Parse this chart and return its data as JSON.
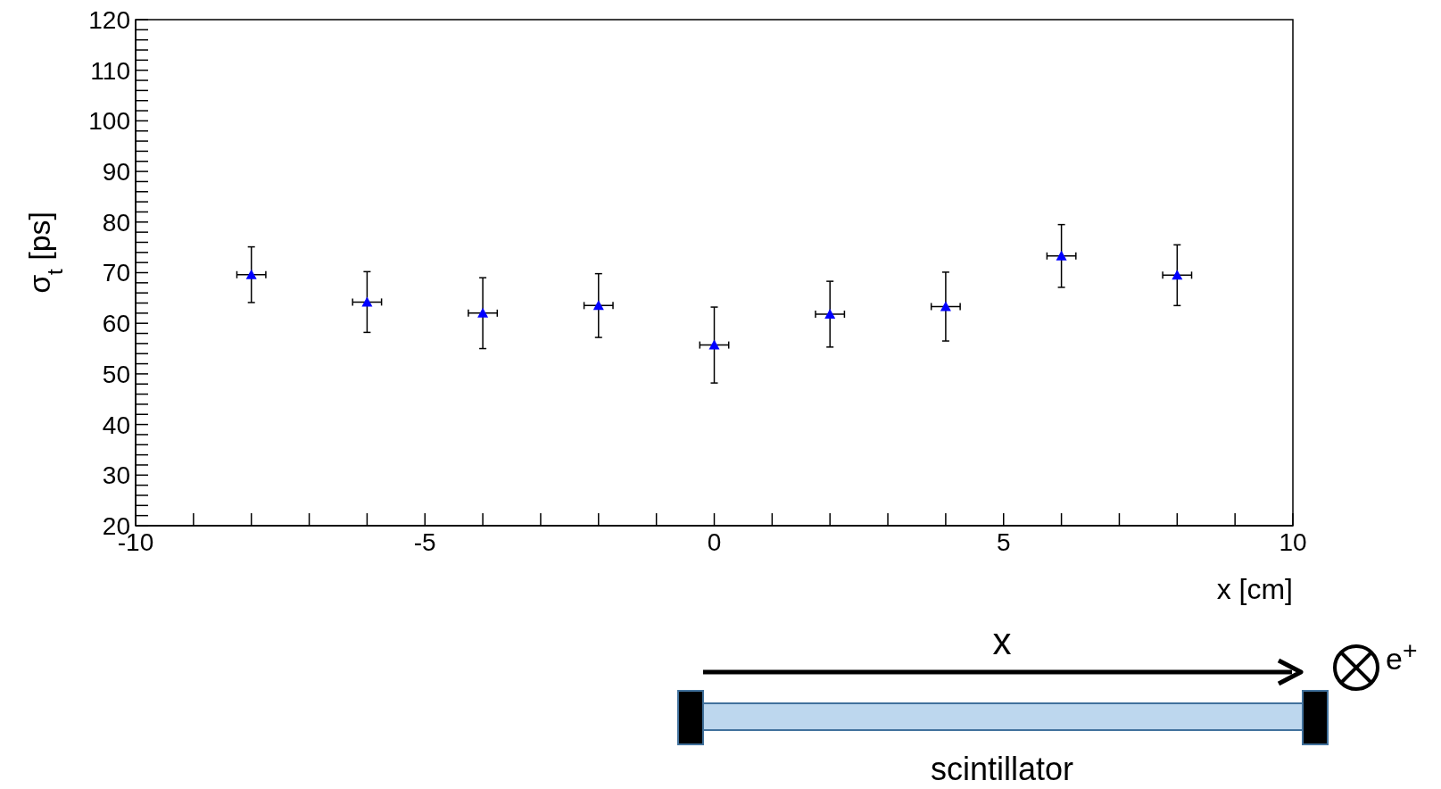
{
  "chart_data": {
    "type": "scatter",
    "xlabel": "x [cm]",
    "ylabel": "σ$_{t}$ [ps]",
    "x": [
      -8,
      -6,
      -4,
      -2,
      0,
      2,
      4,
      6,
      8
    ],
    "series": [
      {
        "color": "#0000ff",
        "values": [
          69.6,
          64.2,
          62.0,
          63.5,
          55.7,
          61.8,
          63.3,
          73.3,
          69.5
        ],
        "errors": [
          5.5,
          6,
          7,
          6.3,
          7.5,
          6.5,
          6.8,
          6.2,
          6
        ],
        "xerrors": [
          0.25,
          0.25,
          0.25,
          0.25,
          0.25,
          0.25,
          0.25,
          0.25,
          0.25
        ]
      }
    ],
    "marker": "triangle",
    "grid": false,
    "legend": false,
    "xlim": [
      -10,
      10
    ],
    "xticks": [
      -10,
      {
        "value": -9,
        "label": null
      },
      {
        "value": -8,
        "label": null
      },
      {
        "value": -7,
        "label": null
      },
      {
        "value": -6,
        "label": null
      },
      -5,
      {
        "value": -4,
        "label": null
      },
      {
        "value": -3,
        "label": null
      },
      {
        "value": -2,
        "label": null
      },
      {
        "value": -1,
        "label": null
      },
      0,
      {
        "value": 1,
        "label": null
      },
      {
        "value": 2,
        "label": null
      },
      {
        "value": 3,
        "label": null
      },
      {
        "value": 4,
        "label": null
      },
      5,
      {
        "value": 6,
        "label": null
      },
      {
        "value": 7,
        "label": null
      },
      {
        "value": 8,
        "label": null
      },
      {
        "value": 9,
        "label": null
      },
      10
    ],
    "ylim": [
      20,
      120
    ],
    "yticks": [
      20,
      {
        "value": 22,
        "label": null
      },
      {
        "value": 24,
        "label": null
      },
      {
        "value": 26,
        "label": null
      },
      {
        "value": 28,
        "label": null
      },
      30,
      {
        "value": 32,
        "label": null
      },
      {
        "value": 34,
        "label": null
      },
      {
        "value": 36,
        "label": null
      },
      {
        "value": 38,
        "label": null
      },
      40,
      {
        "value": 42,
        "label": null
      },
      {
        "value": 44,
        "label": null
      },
      {
        "value": 46,
        "label": null
      },
      {
        "value": 48,
        "label": null
      },
      50,
      {
        "value": 52,
        "label": null
      },
      {
        "value": 54,
        "label": null
      },
      {
        "value": 56,
        "label": null
      },
      {
        "value": 58,
        "label": null
      },
      60,
      {
        "value": 62,
        "label": null
      },
      {
        "value": 64,
        "label": null
      },
      {
        "value": 66,
        "label": null
      },
      {
        "value": 68,
        "label": null
      },
      70,
      {
        "value": 72,
        "label": null
      },
      {
        "value": 74,
        "label": null
      },
      {
        "value": 76,
        "label": null
      },
      {
        "value": 78,
        "label": null
      },
      80,
      {
        "value": 82,
        "label": null
      },
      {
        "value": 84,
        "label": null
      },
      {
        "value": 86,
        "label": null
      },
      {
        "value": 88,
        "label": null
      },
      90,
      {
        "value": 92,
        "label": null
      },
      {
        "value": 94,
        "label": null
      },
      {
        "value": 96,
        "label": null
      },
      {
        "value": 98,
        "label": null
      },
      100,
      {
        "value": 102,
        "label": null
      },
      {
        "value": 104,
        "label": null
      },
      {
        "value": 106,
        "label": null
      },
      {
        "value": 108,
        "label": null
      },
      110,
      {
        "value": 112,
        "label": null
      },
      {
        "value": 114,
        "label": null
      },
      {
        "value": 116,
        "label": null
      },
      {
        "value": 118,
        "label": null
      },
      120
    ],
    "annotations": [
      "x",
      "scintillator",
      "e$^{+}$"
    ]
  }
}
